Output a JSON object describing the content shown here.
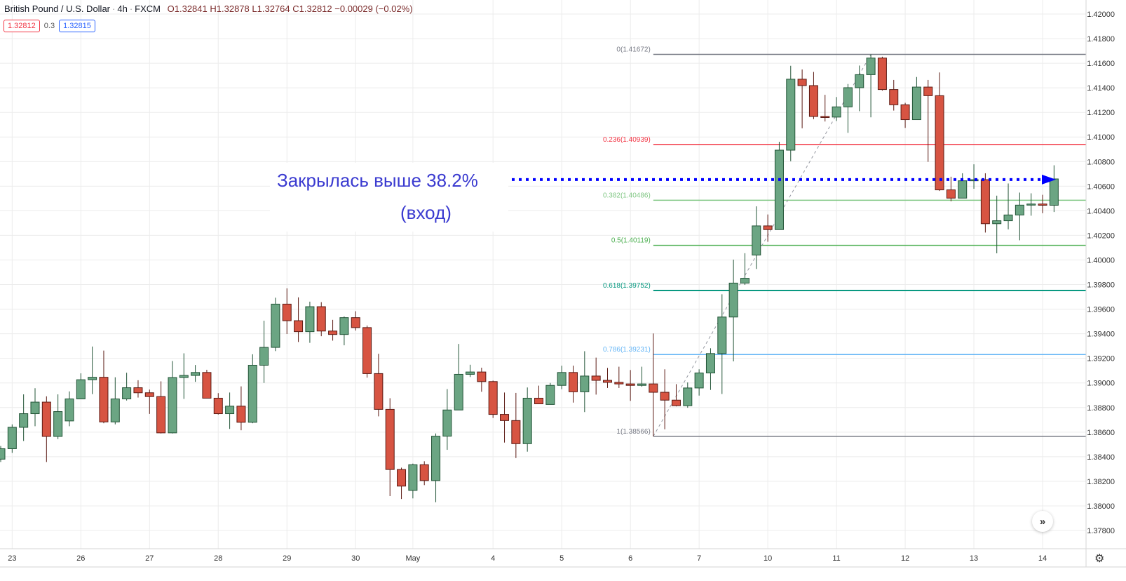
{
  "header": {
    "symbol": "British Pound / U.S. Dollar",
    "interval": "4h",
    "exchange": "FXCM",
    "open": "O1.32841",
    "high": "H1.32878",
    "low": "L1.32764",
    "close": "C1.32812",
    "change": "−0.00029 (−0.02%)",
    "sell_price": "1.32812",
    "spread": "0.3",
    "buy_price": "1.32815"
  },
  "annotation": {
    "line1": "Закрылась выше 38.2%",
    "line2": "(вход)",
    "color": "#3b3bd0",
    "arrow_price": 1.40654,
    "arrow_color": "#0000ff"
  },
  "colors": {
    "up": "#6ba583",
    "up_border": "#225437",
    "down": "#d75442",
    "down_border": "#5b1a13",
    "grid": "#ececec"
  },
  "icons": {
    "scroll_right": "double-chevron-right-icon",
    "settings": "gear-icon"
  },
  "chart_data": {
    "type": "candlestick",
    "ylim": [
      1.377,
      1.4211
    ],
    "grid": true,
    "y_ticks": [
      "1.42000",
      "1.41800",
      "1.41600",
      "1.41400",
      "1.41200",
      "1.41000",
      "1.40800",
      "1.40600",
      "1.40400",
      "1.40200",
      "1.40000",
      "1.39800",
      "1.39600",
      "1.39400",
      "1.39200",
      "1.39000",
      "1.38800",
      "1.38600",
      "1.38400",
      "1.38200",
      "1.38000",
      "1.37800"
    ],
    "x_ticks": [
      {
        "label": "23",
        "candle": 1
      },
      {
        "label": "26",
        "candle": 7
      },
      {
        "label": "27",
        "candle": 13
      },
      {
        "label": "28",
        "candle": 19
      },
      {
        "label": "29",
        "candle": 25
      },
      {
        "label": "30",
        "candle": 31
      },
      {
        "label": "May",
        "candle": 36
      },
      {
        "label": "4",
        "candle": 43
      },
      {
        "label": "5",
        "candle": 49
      },
      {
        "label": "6",
        "candle": 55
      },
      {
        "label": "7",
        "candle": 61
      },
      {
        "label": "10",
        "candle": 67
      },
      {
        "label": "11",
        "candle": 73
      },
      {
        "label": "12",
        "candle": 79
      },
      {
        "label": "13",
        "candle": 85
      },
      {
        "label": "14",
        "candle": 91
      }
    ],
    "ohlc": [
      [
        1.3838,
        1.38487,
        1.38357,
        1.38465
      ],
      [
        1.38465,
        1.38663,
        1.38431,
        1.38639
      ],
      [
        1.38639,
        1.38907,
        1.38528,
        1.3875
      ],
      [
        1.3875,
        1.38957,
        1.38648,
        1.38844
      ],
      [
        1.38844,
        1.38891,
        1.38357,
        1.38565
      ],
      [
        1.38565,
        1.38907,
        1.38543,
        1.38767
      ],
      [
        1.38691,
        1.38931,
        1.38648,
        1.3887
      ],
      [
        1.3887,
        1.39078,
        1.3887,
        1.39026
      ],
      [
        1.39026,
        1.39296,
        1.38909,
        1.39046
      ],
      [
        1.39046,
        1.39263,
        1.38672,
        1.38683
      ],
      [
        1.38683,
        1.39046,
        1.38663,
        1.3887
      ],
      [
        1.3887,
        1.39083,
        1.38857,
        1.38961
      ],
      [
        1.38961,
        1.39022,
        1.38881,
        1.3892
      ],
      [
        1.3892,
        1.38946,
        1.38748,
        1.38889
      ],
      [
        1.38889,
        1.39013,
        1.38589,
        1.38594
      ],
      [
        1.38594,
        1.39178,
        1.38589,
        1.39044
      ],
      [
        1.39044,
        1.39241,
        1.3887,
        1.39061
      ],
      [
        1.39061,
        1.39146,
        1.39009,
        1.39085
      ],
      [
        1.39085,
        1.39107,
        1.38876,
        1.38876
      ],
      [
        1.38876,
        1.38917,
        1.38743,
        1.3875
      ],
      [
        1.3875,
        1.38922,
        1.38626,
        1.38811
      ],
      [
        1.38811,
        1.38972,
        1.38615,
        1.3868
      ],
      [
        1.3868,
        1.39233,
        1.38672,
        1.39144
      ],
      [
        1.39144,
        1.39506,
        1.39,
        1.39289
      ],
      [
        1.39289,
        1.39693,
        1.39259,
        1.39641
      ],
      [
        1.39641,
        1.39769,
        1.39398,
        1.39506
      ],
      [
        1.39506,
        1.39696,
        1.39333,
        1.39417
      ],
      [
        1.39417,
        1.39661,
        1.39326,
        1.3962
      ],
      [
        1.3962,
        1.39657,
        1.3938,
        1.39422
      ],
      [
        1.39422,
        1.39513,
        1.39344,
        1.39394
      ],
      [
        1.39394,
        1.39541,
        1.39306,
        1.39531
      ],
      [
        1.39531,
        1.39583,
        1.39426,
        1.3945
      ],
      [
        1.3945,
        1.39467,
        1.39043,
        1.39076
      ],
      [
        1.39076,
        1.39237,
        1.38728,
        1.38785
      ],
      [
        1.38785,
        1.38876,
        1.3808,
        1.38296
      ],
      [
        1.38296,
        1.38311,
        1.38056,
        1.38161
      ],
      [
        1.38126,
        1.38344,
        1.38061,
        1.38335
      ],
      [
        1.38335,
        1.38363,
        1.38169,
        1.38206
      ],
      [
        1.38206,
        1.38589,
        1.3803,
        1.38567
      ],
      [
        1.38567,
        1.3895,
        1.38456,
        1.3878
      ],
      [
        1.3878,
        1.39317,
        1.3878,
        1.3907
      ],
      [
        1.3907,
        1.39148,
        1.39048,
        1.39089
      ],
      [
        1.39089,
        1.39124,
        1.38928,
        1.39011
      ],
      [
        1.39011,
        1.39019,
        1.38715,
        1.38744
      ],
      [
        1.38744,
        1.38922,
        1.38515,
        1.38694
      ],
      [
        1.38694,
        1.38919,
        1.38389,
        1.38506
      ],
      [
        1.38506,
        1.38963,
        1.38441,
        1.38876
      ],
      [
        1.38876,
        1.38978,
        1.3883,
        1.3883
      ],
      [
        1.38825,
        1.39,
        1.38825,
        1.3898
      ],
      [
        1.3898,
        1.3914,
        1.38949,
        1.39085
      ],
      [
        1.39085,
        1.3914,
        1.3884,
        1.38928
      ],
      [
        1.38928,
        1.39258,
        1.38763,
        1.39056
      ],
      [
        1.39056,
        1.39206,
        1.38905,
        1.39021
      ],
      [
        1.39021,
        1.39122,
        1.38959,
        1.39005
      ],
      [
        1.39005,
        1.39132,
        1.38959,
        1.38992
      ],
      [
        1.38992,
        1.39105,
        1.38854,
        1.3898
      ],
      [
        1.3898,
        1.39132,
        1.38969,
        1.38992
      ],
      [
        1.38992,
        1.39402,
        1.38566,
        1.38924
      ],
      [
        1.38924,
        1.39111,
        1.38623,
        1.3886
      ],
      [
        1.3886,
        1.3899,
        1.38809,
        1.38815
      ],
      [
        1.38815,
        1.39004,
        1.38798,
        1.38959
      ],
      [
        1.38959,
        1.39111,
        1.38897,
        1.39081
      ],
      [
        1.39081,
        1.39282,
        1.38943,
        1.39239
      ],
      [
        1.39239,
        1.39721,
        1.3891,
        1.39536
      ],
      [
        1.39536,
        1.40003,
        1.39175,
        1.39812
      ],
      [
        1.39812,
        1.40055,
        1.39797,
        1.39851
      ],
      [
        1.4004,
        1.40436,
        1.39927,
        1.40277
      ],
      [
        1.40277,
        1.4037,
        1.40148,
        1.40247
      ],
      [
        1.40247,
        1.40961,
        1.40247,
        1.40893
      ],
      [
        1.40893,
        1.41579,
        1.40803,
        1.4147
      ],
      [
        1.4147,
        1.41549,
        1.41071,
        1.41418
      ],
      [
        1.41418,
        1.41529,
        1.41145,
        1.41167
      ],
      [
        1.41167,
        1.41343,
        1.41126,
        1.41162
      ],
      [
        1.41162,
        1.41325,
        1.4113,
        1.41245
      ],
      [
        1.41245,
        1.41431,
        1.41034,
        1.41401
      ],
      [
        1.41401,
        1.41581,
        1.4121,
        1.41507
      ],
      [
        1.41507,
        1.41672,
        1.4116,
        1.41642
      ],
      [
        1.41642,
        1.41653,
        1.41377,
        1.41386
      ],
      [
        1.41386,
        1.41464,
        1.41215,
        1.41262
      ],
      [
        1.41262,
        1.41278,
        1.41074,
        1.41141
      ],
      [
        1.41141,
        1.41488,
        1.41141,
        1.41406
      ],
      [
        1.41406,
        1.41464,
        1.40798,
        1.41336
      ],
      [
        1.41336,
        1.41525,
        1.40561,
        1.4057
      ],
      [
        1.4057,
        1.40677,
        1.40477,
        1.40503
      ],
      [
        1.40503,
        1.40705,
        1.40503,
        1.40644
      ],
      [
        1.40644,
        1.40778,
        1.40579,
        1.40653
      ],
      [
        1.40653,
        1.40705,
        1.40223,
        1.40295
      ],
      [
        1.40295,
        1.40523,
        1.40054,
        1.40319
      ],
      [
        1.40319,
        1.40622,
        1.40249,
        1.40366
      ],
      [
        1.40366,
        1.40548,
        1.4016,
        1.40446
      ],
      [
        1.40446,
        1.40542,
        1.4036,
        1.40455
      ],
      [
        1.40455,
        1.4053,
        1.4038,
        1.40445
      ],
      [
        1.40445,
        1.4077,
        1.4039,
        1.40659
      ]
    ],
    "fibonacci": {
      "from_candle": 57,
      "to_candle": 76,
      "levels": [
        {
          "label": "0(1.41672)",
          "price": 1.41672,
          "color": "#787b86"
        },
        {
          "label": "0.236(1.40939)",
          "price": 1.40939,
          "color": "#f23645"
        },
        {
          "label": "0.382(1.40486)",
          "price": 1.40486,
          "color": "#81c784"
        },
        {
          "label": "0.5(1.40119)",
          "price": 1.40119,
          "color": "#4caf50"
        },
        {
          "label": "0.618(1.39752)",
          "price": 1.39752,
          "color": "#089981"
        },
        {
          "label": "0.786(1.39231)",
          "price": 1.39231,
          "color": "#64b5f6"
        },
        {
          "label": "1(1.38566)",
          "price": 1.38566,
          "color": "#787b86"
        }
      ]
    }
  }
}
